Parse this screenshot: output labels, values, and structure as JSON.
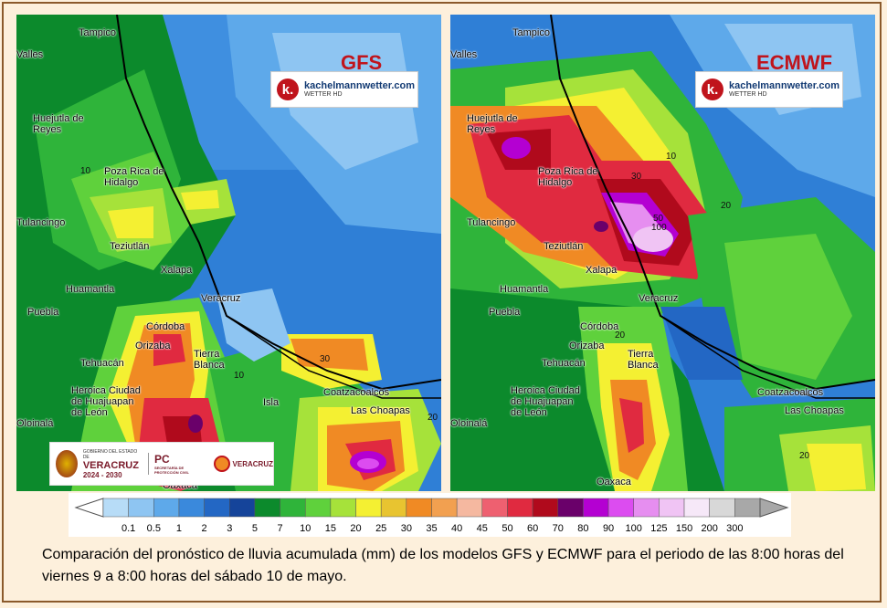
{
  "maps": {
    "gfs": {
      "model": "GFS",
      "cities": [
        "Tampico",
        "Valles",
        "Huejutla de Reyes",
        "Poza Rica de Hidalgo",
        "Tulancingo",
        "Teziutlán",
        "Xalapa",
        "Huamantla",
        "Veracruz",
        "Puebla",
        "Córdoba",
        "Orizaba",
        "Tierra Blanca",
        "Tehuacán",
        "Heroica Ciudad de Huajuapan de León",
        "Isla",
        "Coatzacoalcos",
        "Las Choapas",
        "Oaxaca",
        "Oloinalá"
      ],
      "isolines": [
        "10",
        "30",
        "10",
        "20"
      ]
    },
    "ecmwf": {
      "model": "ECMWF",
      "cities": [
        "Tampico",
        "Valles",
        "Huejutla de Reyes",
        "Poza Rica de Hidalgo",
        "Tulancingo",
        "Teziutlán",
        "Xalapa",
        "Huamantla",
        "Veracruz",
        "Puebla",
        "Córdoba",
        "Orizaba",
        "Tierra Blanca",
        "Tehuacán",
        "Heroica Ciudad de Huajuapan de León",
        "Coatzacoalcos",
        "Las Choapas",
        "Oaxaca",
        "Oloinalá"
      ],
      "isolines": [
        "30",
        "50",
        "100",
        "20",
        "10",
        "20",
        "20"
      ]
    }
  },
  "logo": {
    "site": "kachelmannwetter.com",
    "sub": "WETTER HD",
    "letter": "k."
  },
  "government": {
    "line1": "GOBIERNO DEL ESTADO DE",
    "name": "VERACRUZ",
    "years": "2024 - 2030",
    "pc": "PC",
    "pc_sub": "SECRETARÍA DE PROTECCIÓN CIVIL",
    "right": "VERACRUZ"
  },
  "legend": {
    "labels": [
      "0.1",
      "0.5",
      "1",
      "2",
      "3",
      "5",
      "7",
      "10",
      "15",
      "20",
      "25",
      "30",
      "35",
      "40",
      "45",
      "50",
      "60",
      "70",
      "80",
      "90",
      "100",
      "125",
      "150",
      "200",
      "300"
    ],
    "colors": [
      "#b7dcf7",
      "#8ec5f2",
      "#5ea9ea",
      "#3a89dc",
      "#2367c4",
      "#15449a",
      "#0c8a2c",
      "#2fb43a",
      "#5fd13c",
      "#a6e23a",
      "#f4f032",
      "#e8c430",
      "#f08a24",
      "#f2a050",
      "#f5b8a0",
      "#ee6070",
      "#e02a40",
      "#b00a1c",
      "#6a006a",
      "#b400d2",
      "#dc4cf0",
      "#e68ef0",
      "#f0c4f4",
      "#f6e8f8",
      "#d8d8d8",
      "#a8a8a8"
    ]
  },
  "caption": "Comparación del pronóstico de lluvia acumulada (mm) de los modelos GFS y ECMWF para el periodo de las 8:00 horas del viernes 9 a 8:00 horas del sábado 10 de mayo."
}
